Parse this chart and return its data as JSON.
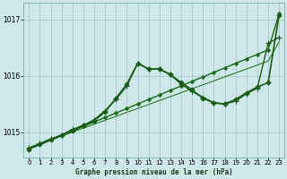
{
  "title": "Graphe pression niveau de la mer (hPa)",
  "bg_color": "#cce8e8",
  "grid_color": "#aacccc",
  "xlim": [
    -0.5,
    23.5
  ],
  "ylim": [
    1014.55,
    1017.3
  ],
  "yticks": [
    1015,
    1016,
    1017
  ],
  "xticks": [
    0,
    1,
    2,
    3,
    4,
    5,
    6,
    7,
    8,
    9,
    10,
    11,
    12,
    13,
    14,
    15,
    16,
    17,
    18,
    19,
    20,
    21,
    22,
    23
  ],
  "series": [
    {
      "x": [
        0,
        1,
        2,
        3,
        4,
        5,
        6,
        7,
        8,
        9,
        10,
        11,
        12,
        13,
        14,
        15,
        16,
        17,
        18,
        19,
        20,
        21,
        22,
        23
      ],
      "y": [
        1014.7,
        1014.78,
        1014.86,
        1014.94,
        1015.02,
        1015.1,
        1015.18,
        1015.26,
        1015.34,
        1015.42,
        1015.5,
        1015.58,
        1015.66,
        1015.74,
        1015.82,
        1015.9,
        1015.98,
        1016.06,
        1016.14,
        1016.22,
        1016.3,
        1016.38,
        1016.46,
        1017.1
      ],
      "color": "#1a6b1a",
      "lw": 1.0,
      "marker": "D",
      "ms": 2.0
    },
    {
      "x": [
        0,
        1,
        2,
        3,
        4,
        5,
        6,
        7,
        8,
        9,
        10,
        11,
        12,
        13,
        14,
        15,
        16,
        17,
        18,
        19,
        20,
        21,
        22,
        23
      ],
      "y": [
        1014.72,
        1014.79,
        1014.86,
        1014.93,
        1015.0,
        1015.07,
        1015.14,
        1015.21,
        1015.28,
        1015.35,
        1015.42,
        1015.49,
        1015.56,
        1015.63,
        1015.7,
        1015.77,
        1015.84,
        1015.91,
        1015.98,
        1016.05,
        1016.12,
        1016.19,
        1016.26,
        1016.6
      ],
      "color": "#2d7a2d",
      "lw": 0.8,
      "marker": null,
      "ms": 0
    },
    {
      "x": [
        0,
        1,
        2,
        3,
        4,
        5,
        6,
        7,
        8,
        9,
        10,
        11,
        12,
        13,
        14,
        15,
        16,
        17,
        18,
        19,
        20,
        21,
        22,
        23
      ],
      "y": [
        1014.72,
        1014.8,
        1014.88,
        1014.95,
        1015.05,
        1015.12,
        1015.22,
        1015.38,
        1015.58,
        1015.82,
        1016.22,
        1016.12,
        1016.12,
        1016.02,
        1015.85,
        1015.72,
        1015.62,
        1015.52,
        1015.5,
        1015.55,
        1015.68,
        1015.78,
        1016.58,
        1016.68
      ],
      "color": "#1a5c1a",
      "lw": 1.0,
      "marker": "+",
      "ms": 4.0
    },
    {
      "x": [
        0,
        1,
        2,
        3,
        4,
        5,
        6,
        7,
        8,
        9,
        10,
        11,
        12,
        13,
        14,
        15,
        16,
        17,
        18,
        19,
        20,
        21,
        22,
        23
      ],
      "y": [
        1014.7,
        1014.78,
        1014.86,
        1014.94,
        1015.02,
        1015.12,
        1015.2,
        1015.36,
        1015.6,
        1015.85,
        1016.22,
        1016.12,
        1016.12,
        1016.02,
        1015.88,
        1015.75,
        1015.6,
        1015.52,
        1015.5,
        1015.58,
        1015.7,
        1015.8,
        1015.88,
        1017.08
      ],
      "color": "#1a5c1a",
      "lw": 1.2,
      "marker": "D",
      "ms": 2.5
    }
  ]
}
